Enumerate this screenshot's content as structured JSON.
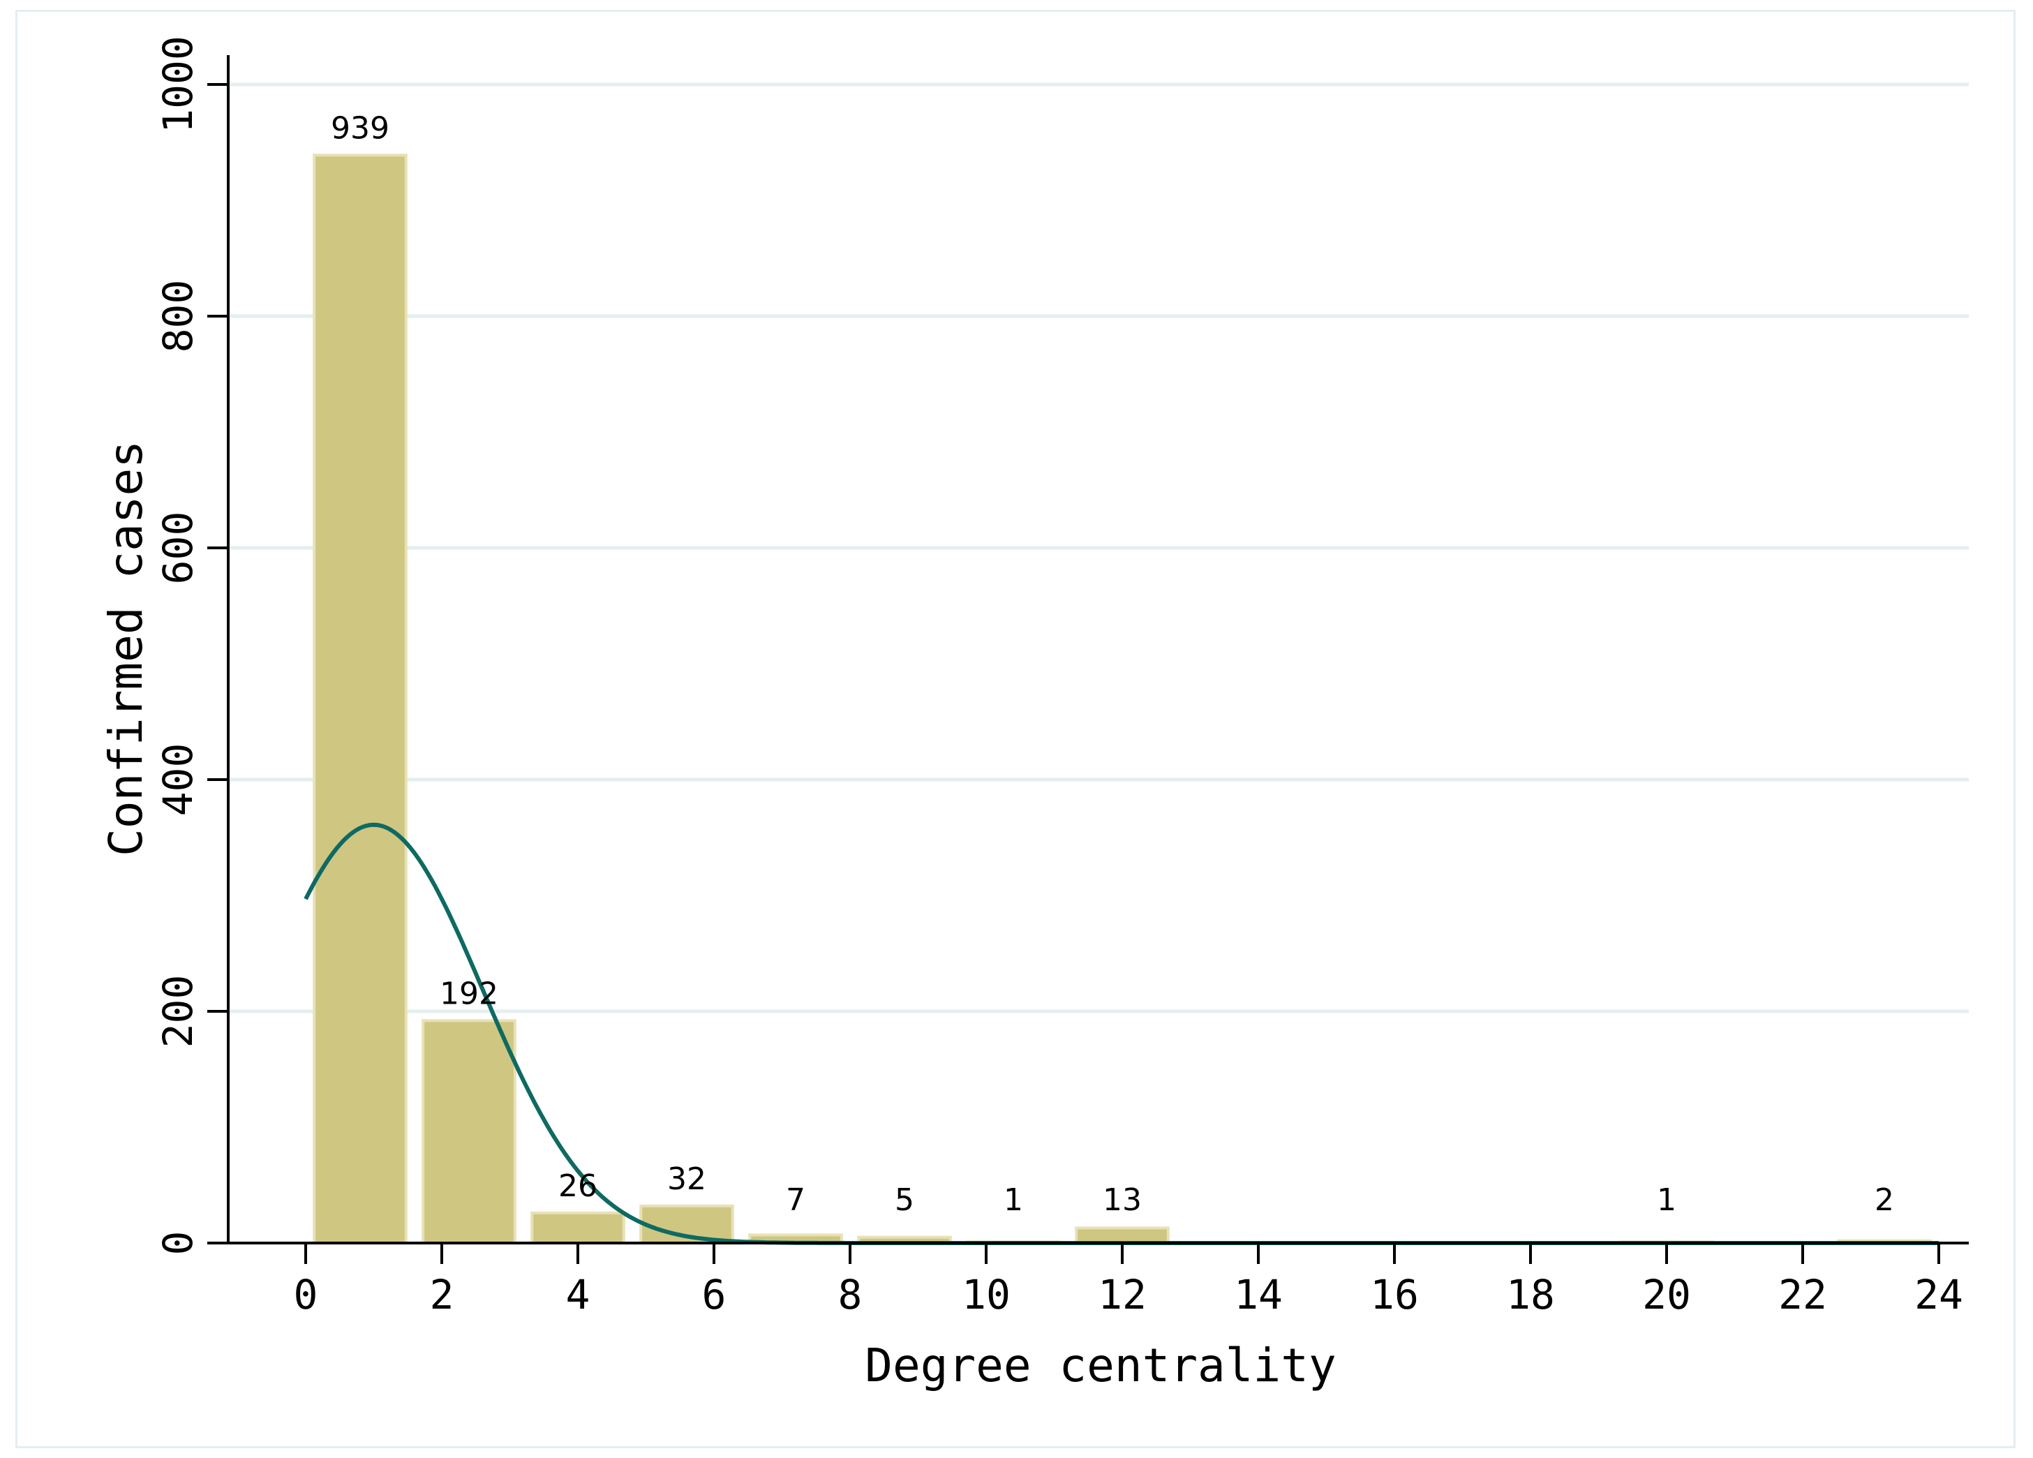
{
  "chart_data": {
    "type": "bar",
    "xlabel": "Degree centrality",
    "ylabel": "Confirmed cases",
    "xlim": [
      -1.1,
      24.4
    ],
    "ylim": [
      0,
      1000
    ],
    "xticks": [
      0,
      2,
      4,
      6,
      8,
      10,
      12,
      14,
      16,
      18,
      20,
      22,
      24
    ],
    "yticks": [
      0,
      200,
      400,
      600,
      800,
      1000
    ],
    "grid": true,
    "bar_width": 1.35,
    "bars": [
      {
        "x": 0.8,
        "value": 939,
        "label": "939"
      },
      {
        "x": 2.4,
        "value": 192,
        "label": "192"
      },
      {
        "x": 4.0,
        "value": 26,
        "label": "26"
      },
      {
        "x": 5.6,
        "value": 32,
        "label": "32"
      },
      {
        "x": 7.2,
        "value": 7,
        "label": "7"
      },
      {
        "x": 8.8,
        "value": 5,
        "label": "5"
      },
      {
        "x": 10.4,
        "value": 1,
        "label": "1"
      },
      {
        "x": 12.0,
        "value": 13,
        "label": "13"
      },
      {
        "x": 20.0,
        "value": 1,
        "label": "1"
      },
      {
        "x": 23.2,
        "value": 2,
        "label": "2"
      }
    ],
    "density_curve": {
      "type": "normal",
      "mean": 1.0,
      "sd": 1.6,
      "peak": 361,
      "x_range": [
        0,
        24
      ]
    },
    "colors": {
      "bar_fill": "#cfc682",
      "bar_stroke": "#e7e1b6",
      "curve": "#0e6a62",
      "grid": "#e4eef1",
      "axis": "#000000"
    }
  }
}
